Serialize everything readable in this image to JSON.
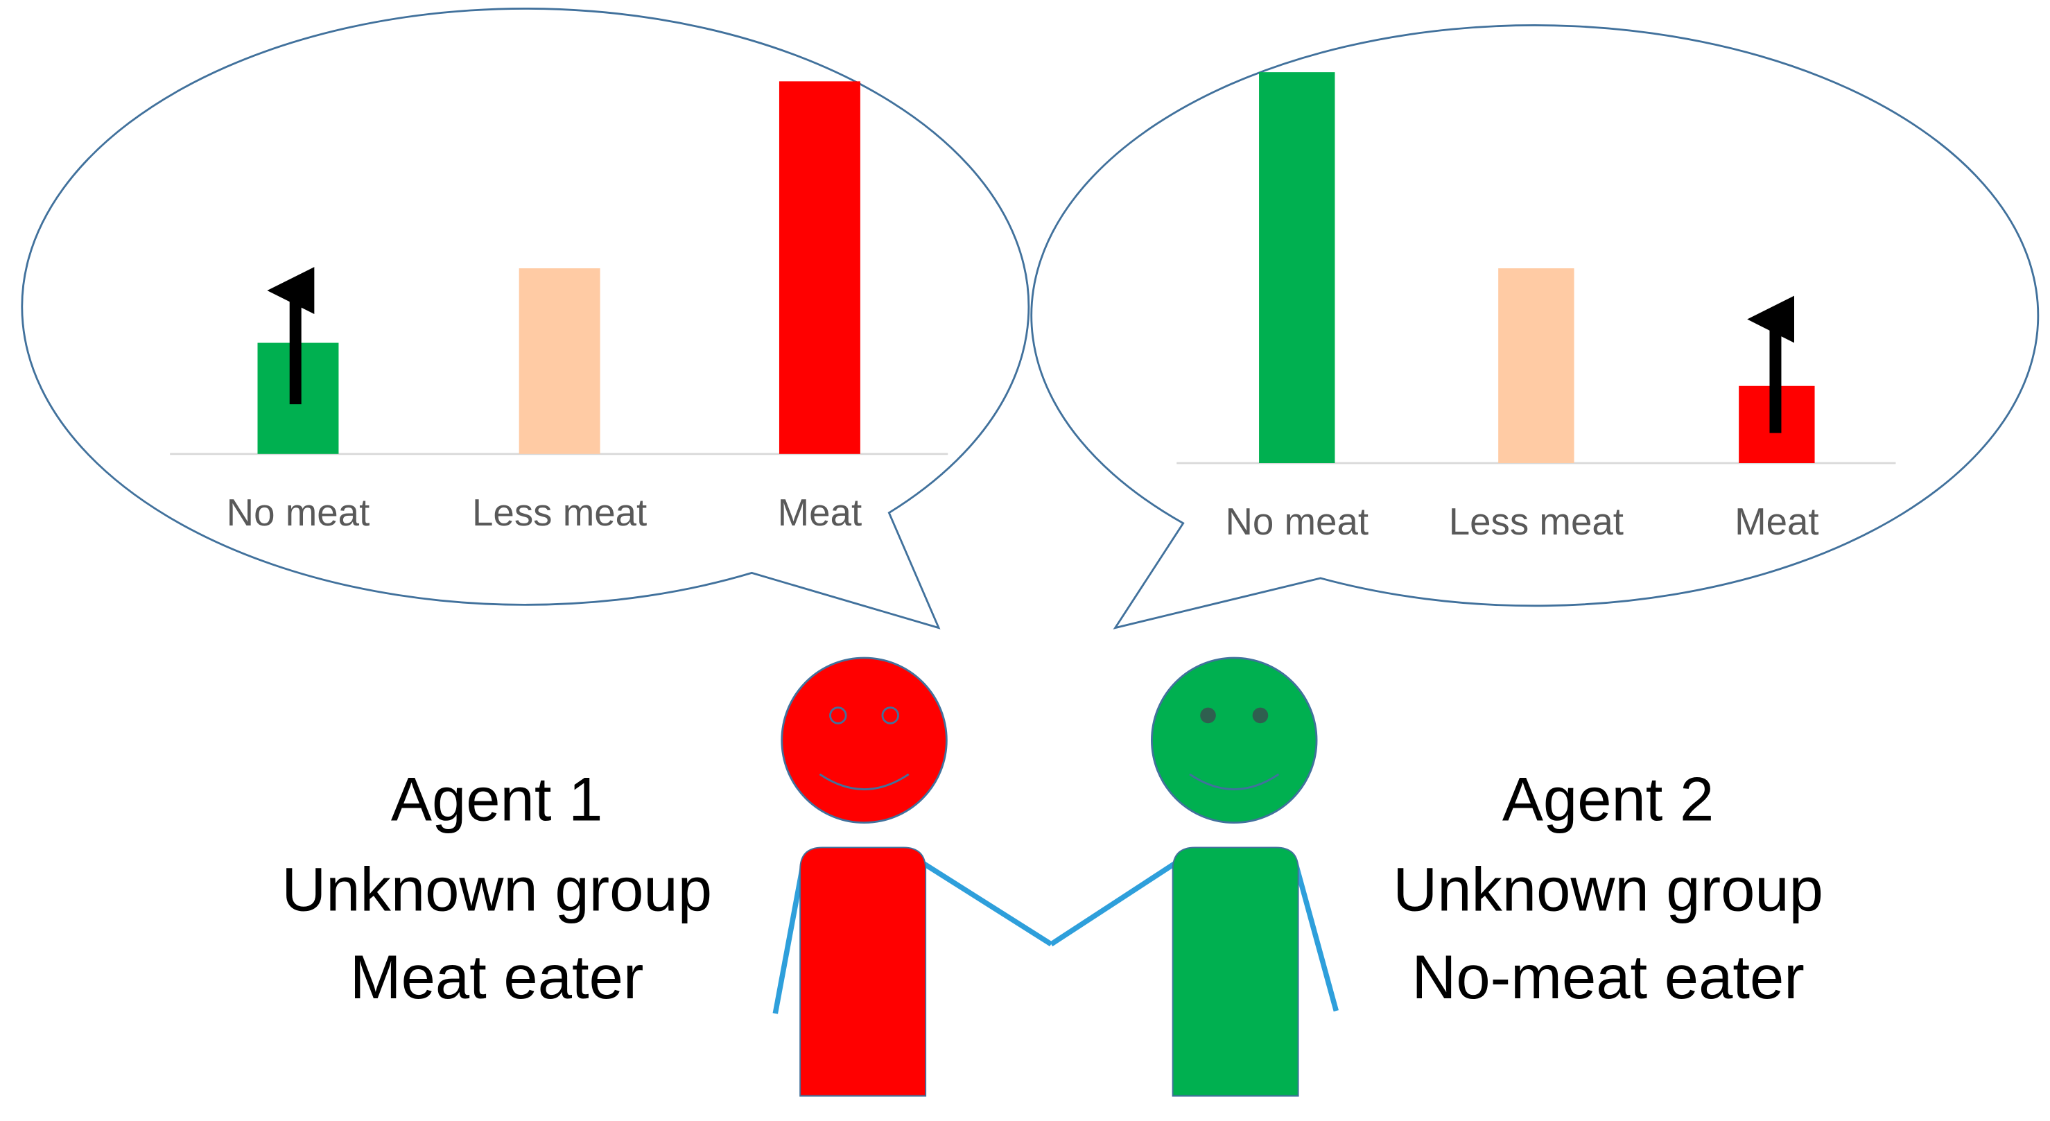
{
  "charts": [
    {
      "type": "bar",
      "categories": [
        "No meat",
        "Less meat",
        "Meat"
      ],
      "values": [
        85,
        142,
        285
      ],
      "colors": [
        "#00b050",
        "#ffcba4",
        "#ff0000"
      ]
    },
    {
      "type": "bar",
      "categories": [
        "No meat",
        "Less meat",
        "Meat"
      ],
      "values": [
        299,
        149,
        59
      ],
      "colors": [
        "#00b050",
        "#ffcba4",
        "#ff0000"
      ]
    }
  ],
  "agents": [
    {
      "name": "Agent 1",
      "group": "Unknown group",
      "diet": "Meat eater"
    },
    {
      "name": "Agent 2",
      "group": "Unknown group",
      "diet": "No-meat eater"
    }
  ]
}
